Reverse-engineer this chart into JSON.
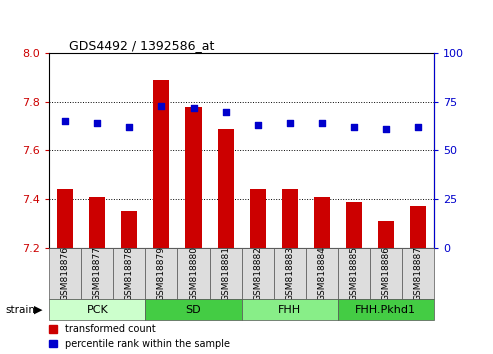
{
  "title": "GDS4492 / 1392586_at",
  "samples": [
    "GSM818876",
    "GSM818877",
    "GSM818878",
    "GSM818879",
    "GSM818880",
    "GSM818881",
    "GSM818882",
    "GSM818883",
    "GSM818884",
    "GSM818885",
    "GSM818886",
    "GSM818887"
  ],
  "bar_values": [
    7.44,
    7.41,
    7.35,
    7.89,
    7.78,
    7.69,
    7.44,
    7.44,
    7.41,
    7.39,
    7.31,
    7.37
  ],
  "dot_values": [
    65,
    64,
    62,
    73,
    72,
    70,
    63,
    64,
    64,
    62,
    61,
    62
  ],
  "bar_base": 7.2,
  "bar_color": "#cc0000",
  "dot_color": "#0000cc",
  "ylim_left": [
    7.2,
    8.0
  ],
  "ylim_right": [
    0,
    100
  ],
  "yticks_left": [
    7.2,
    7.4,
    7.6,
    7.8,
    8.0
  ],
  "yticks_right": [
    0,
    25,
    50,
    75,
    100
  ],
  "groups": [
    {
      "label": "PCK",
      "start": 0,
      "end": 3,
      "color": "#ccffcc"
    },
    {
      "label": "SD",
      "start": 3,
      "end": 6,
      "color": "#44cc44"
    },
    {
      "label": "FHH",
      "start": 6,
      "end": 9,
      "color": "#88ee88"
    },
    {
      "label": "FHH.Pkhd1",
      "start": 9,
      "end": 12,
      "color": "#44cc44"
    }
  ],
  "strain_label": "strain",
  "legend_bar": "transformed count",
  "legend_dot": "percentile rank within the sample",
  "tick_color_left": "#cc0000",
  "tick_color_right": "#0000cc",
  "bar_width": 0.5,
  "tick_bg_color": "#dddddd",
  "border_color": "#555555"
}
